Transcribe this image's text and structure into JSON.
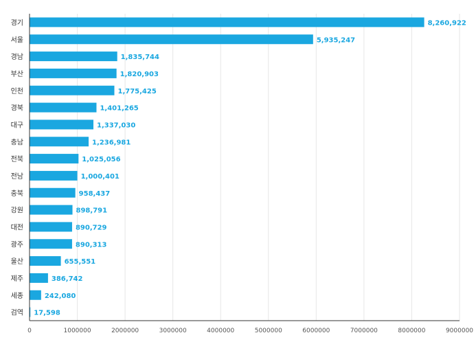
{
  "chart_data": {
    "type": "bar",
    "orientation": "horizontal",
    "title": "",
    "xlabel": "",
    "ylabel": "",
    "categories": [
      "경기",
      "서울",
      "경남",
      "부산",
      "인천",
      "경북",
      "대구",
      "충남",
      "전북",
      "전남",
      "충북",
      "강원",
      "대전",
      "광주",
      "울산",
      "제주",
      "세종",
      "검역"
    ],
    "values": [
      8260922,
      5935247,
      1835744,
      1820903,
      1775425,
      1401265,
      1337030,
      1236981,
      1025056,
      1000401,
      958437,
      898791,
      890729,
      890313,
      655551,
      386742,
      242080,
      17598
    ],
    "value_labels": [
      "8,260,922",
      "5,935,247",
      "1,835,744",
      "1,820,903",
      "1,775,425",
      "1,401,265",
      "1,337,030",
      "1,236,981",
      "1,025,056",
      "1,000,401",
      "958,437",
      "898,791",
      "890,729",
      "890,313",
      "655,551",
      "386,742",
      "242,080",
      "17,598"
    ],
    "xlim": [
      0,
      9000000
    ],
    "xticks": [
      0,
      1000000,
      2000000,
      3000000,
      4000000,
      5000000,
      6000000,
      7000000,
      8000000,
      9000000
    ],
    "xtick_labels": [
      "0",
      "1000000",
      "2000000",
      "3000000",
      "4000000",
      "5000000",
      "6000000",
      "7000000",
      "8000000",
      "9000000"
    ],
    "grid": true,
    "legend": "none"
  },
  "colors": {
    "bar": "#1aa7e0",
    "value_label": "#1aa7e0",
    "grid": "#e6e6e6",
    "axis": "#333333"
  }
}
